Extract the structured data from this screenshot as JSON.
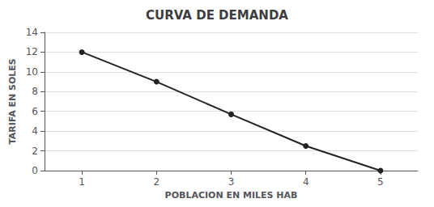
{
  "chart_data": {
    "type": "line",
    "title": "CURVA DE DEMANDA",
    "xlabel": "POBLACION EN MILES HAB",
    "ylabel": "TARIFA EN SOLES",
    "x": [
      1,
      2,
      3,
      4,
      5
    ],
    "values": [
      12,
      9,
      5.7,
      2.5,
      0
    ],
    "xlim": [
      0.5,
      5.5
    ],
    "ylim": [
      0,
      14
    ],
    "xticks": [
      1,
      2,
      3,
      4,
      5
    ],
    "yticks": [
      0,
      2,
      4,
      6,
      8,
      10,
      12,
      14
    ],
    "color": "#222222",
    "marker": "circle",
    "grid": true
  }
}
